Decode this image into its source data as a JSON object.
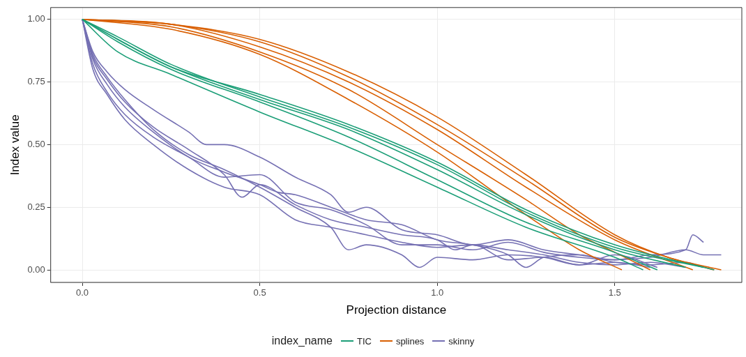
{
  "chart_data": {
    "type": "line",
    "xlabel": "Projection distance",
    "ylabel": "Index value",
    "legend_title": "index_name",
    "legend": "bottom",
    "grid": true,
    "marker": "none",
    "line_style": "solid",
    "xlim": [
      -0.089,
      1.858
    ],
    "xticks": [
      {
        "value": 0,
        "label": "0.0"
      },
      {
        "value": 0.5,
        "label": "0.5"
      },
      {
        "value": 1,
        "label": "1.0"
      },
      {
        "value": 1.5,
        "label": "1.5"
      }
    ],
    "ylim": [
      -0.05,
      1.047
    ],
    "yticks": [
      {
        "value": 0,
        "label": "0.00"
      },
      {
        "value": 0.25,
        "label": "0.25"
      },
      {
        "value": 0.5,
        "label": "0.50"
      },
      {
        "value": 0.75,
        "label": "0.75"
      },
      {
        "value": 1,
        "label": "1.00"
      }
    ],
    "series": [
      {
        "name": "TIC",
        "color": "#1b9e77",
        "x": [
          0,
          0.1,
          0.25,
          0.5,
          0.75,
          1.0,
          1.25,
          1.5,
          1.58
        ],
        "values": [
          1,
          0.87,
          0.78,
          0.63,
          0.49,
          0.33,
          0.17,
          0.05,
          0
        ]
      },
      {
        "color": "#1b9e77",
        "x": [
          0,
          0.1,
          0.25,
          0.5,
          0.75,
          1.0,
          1.25,
          1.5,
          1.62
        ],
        "values": [
          1,
          0.91,
          0.8,
          0.67,
          0.53,
          0.36,
          0.19,
          0.07,
          0
        ]
      },
      {
        "color": "#1b9e77",
        "x": [
          0,
          0.1,
          0.25,
          0.5,
          0.75,
          1.0,
          1.25,
          1.5,
          1.7
        ],
        "values": [
          1,
          0.92,
          0.81,
          0.68,
          0.56,
          0.4,
          0.22,
          0.08,
          0.01
        ]
      },
      {
        "color": "#1b9e77",
        "x": [
          0,
          0.1,
          0.25,
          0.5,
          0.75,
          1.0,
          1.25,
          1.5,
          1.75
        ],
        "values": [
          1,
          0.93,
          0.82,
          0.69,
          0.57,
          0.42,
          0.23,
          0.09,
          0.01
        ]
      },
      {
        "color": "#1b9e77",
        "x": [
          0,
          0.1,
          0.25,
          0.5,
          0.75,
          1.0,
          1.25,
          1.5,
          1.78
        ],
        "values": [
          1,
          0.92,
          0.81,
          0.7,
          0.58,
          0.43,
          0.24,
          0.1,
          0
        ]
      },
      {
        "name": "splines",
        "color": "#d95f02",
        "x": [
          0,
          0.25,
          0.5,
          0.75,
          1.0,
          1.25,
          1.4,
          1.52
        ],
        "values": [
          1,
          0.96,
          0.86,
          0.68,
          0.47,
          0.22,
          0.08,
          0
        ]
      },
      {
        "color": "#d95f02",
        "x": [
          0,
          0.25,
          0.5,
          0.75,
          1.0,
          1.25,
          1.4,
          1.5,
          1.6
        ],
        "values": [
          1,
          0.97,
          0.87,
          0.72,
          0.5,
          0.28,
          0.14,
          0.07,
          0
        ]
      },
      {
        "color": "#d95f02",
        "x": [
          0,
          0.25,
          0.5,
          0.75,
          1.0,
          1.25,
          1.5,
          1.72
        ],
        "values": [
          1,
          0.98,
          0.89,
          0.75,
          0.56,
          0.33,
          0.12,
          0
        ]
      },
      {
        "color": "#d95f02",
        "x": [
          0,
          0.25,
          0.5,
          0.75,
          1.0,
          1.25,
          1.5,
          1.65,
          1.78
        ],
        "values": [
          1,
          0.98,
          0.91,
          0.77,
          0.58,
          0.36,
          0.13,
          0.05,
          0
        ]
      },
      {
        "color": "#d95f02",
        "x": [
          0,
          0.25,
          0.5,
          0.75,
          1.0,
          1.25,
          1.5,
          1.65,
          1.8
        ],
        "values": [
          1,
          0.98,
          0.92,
          0.79,
          0.61,
          0.38,
          0.14,
          0.05,
          0
        ]
      },
      {
        "name": "skinny",
        "color": "#7570b3",
        "x": [
          0,
          0.03,
          0.07,
          0.12,
          0.2,
          0.3,
          0.4,
          0.5,
          0.6,
          0.7,
          0.75,
          0.8,
          0.9,
          0.95,
          1.0,
          1.1,
          1.2,
          1.3,
          1.4,
          1.5,
          1.6
        ],
        "values": [
          1,
          0.86,
          0.77,
          0.68,
          0.56,
          0.46,
          0.4,
          0.33,
          0.25,
          0.17,
          0.08,
          0.1,
          0.06,
          0.01,
          0.05,
          0.04,
          0.06,
          0.05,
          0.02,
          0.03,
          0.01
        ]
      },
      {
        "color": "#7570b3",
        "x": [
          0,
          0.03,
          0.07,
          0.12,
          0.2,
          0.3,
          0.4,
          0.45,
          0.5,
          0.6,
          0.7,
          0.8,
          0.9,
          1.0,
          1.05,
          1.1,
          1.2,
          1.3,
          1.4,
          1.5,
          1.62
        ],
        "values": [
          1,
          0.85,
          0.76,
          0.67,
          0.57,
          0.48,
          0.38,
          0.29,
          0.34,
          0.26,
          0.2,
          0.17,
          0.14,
          0.12,
          0.08,
          0.1,
          0.04,
          0.05,
          0.02,
          0.06,
          0.01
        ]
      },
      {
        "color": "#7570b3",
        "x": [
          0,
          0.03,
          0.07,
          0.12,
          0.2,
          0.3,
          0.4,
          0.5,
          0.55,
          0.6,
          0.7,
          0.8,
          0.9,
          1.0,
          1.1,
          1.2,
          1.25,
          1.3,
          1.4,
          1.5,
          1.6,
          1.7,
          1.75
        ],
        "values": [
          1,
          0.84,
          0.74,
          0.65,
          0.55,
          0.45,
          0.39,
          0.34,
          0.31,
          0.3,
          0.25,
          0.2,
          0.18,
          0.12,
          0.1,
          0.06,
          0.01,
          0.05,
          0.06,
          0.03,
          0.02,
          0.03,
          0.01
        ]
      },
      {
        "color": "#7570b3",
        "x": [
          0,
          0.03,
          0.07,
          0.12,
          0.2,
          0.3,
          0.35,
          0.4,
          0.5,
          0.6,
          0.7,
          0.75,
          0.8,
          0.9,
          1.0,
          1.1,
          1.2,
          1.3,
          1.4,
          1.5,
          1.6,
          1.7,
          1.75,
          1.8
        ],
        "values": [
          1,
          0.87,
          0.79,
          0.72,
          0.64,
          0.55,
          0.5,
          0.5,
          0.45,
          0.37,
          0.3,
          0.23,
          0.25,
          0.16,
          0.14,
          0.1,
          0.12,
          0.08,
          0.06,
          0.04,
          0.05,
          0.08,
          0.06,
          0.06
        ]
      },
      {
        "color": "#7570b3",
        "x": [
          0,
          0.03,
          0.07,
          0.12,
          0.2,
          0.3,
          0.4,
          0.5,
          0.6,
          0.7,
          0.8,
          0.9,
          1.0,
          1.1,
          1.2,
          1.3,
          1.4,
          1.5,
          1.6,
          1.7,
          1.72,
          1.75
        ],
        "values": [
          1,
          0.82,
          0.71,
          0.62,
          0.53,
          0.45,
          0.37,
          0.38,
          0.27,
          0.24,
          0.18,
          0.1,
          0.1,
          0.08,
          0.11,
          0.07,
          0.05,
          0.04,
          0.06,
          0.08,
          0.14,
          0.11
        ]
      },
      {
        "color": "#7570b3",
        "x": [
          0,
          0.03,
          0.07,
          0.12,
          0.2,
          0.3,
          0.4,
          0.5,
          0.6,
          0.7,
          0.8,
          0.9,
          1.0,
          1.1,
          1.2,
          1.3,
          1.4,
          1.5,
          1.6,
          1.7
        ],
        "values": [
          1,
          0.8,
          0.7,
          0.6,
          0.5,
          0.4,
          0.33,
          0.3,
          0.2,
          0.17,
          0.14,
          0.11,
          0.09,
          0.1,
          0.08,
          0.06,
          0.03,
          0.02,
          0.03,
          0.01
        ]
      }
    ]
  }
}
